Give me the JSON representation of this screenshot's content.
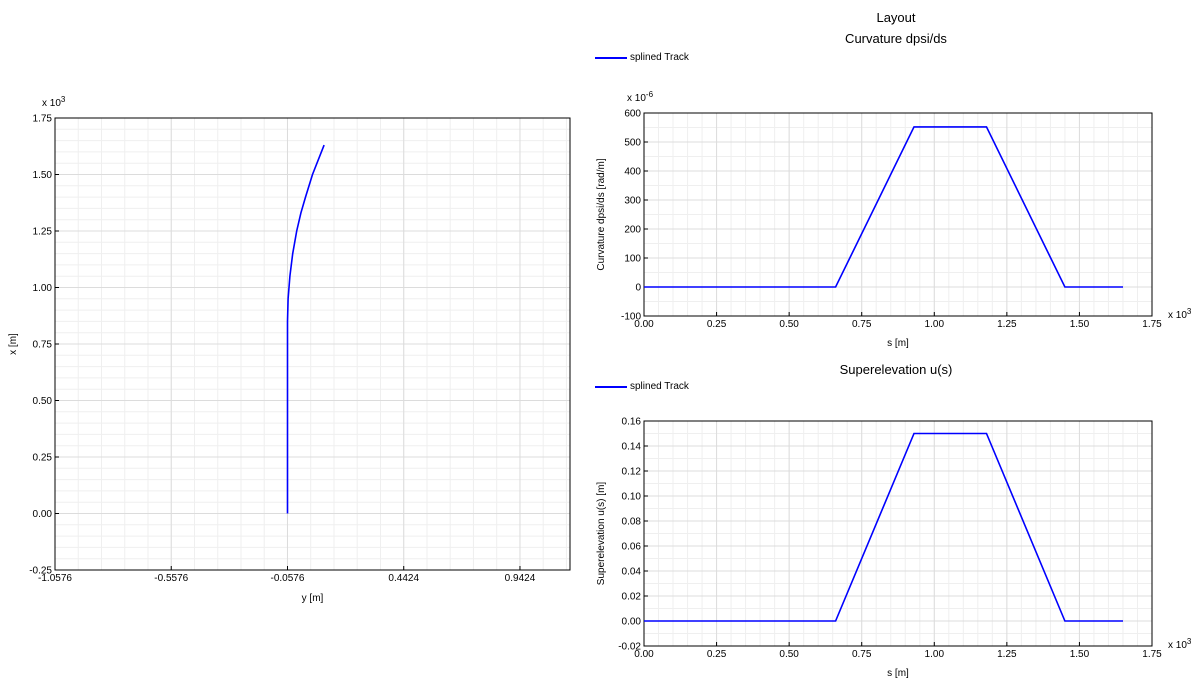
{
  "headings": {
    "layout": "Layout",
    "curvature": "Curvature dpsi/ds",
    "superelevation": "Superelevation u(s)"
  },
  "colors": {
    "series": "#0000ff",
    "grid": "#dcdcdc",
    "axis": "#000000"
  },
  "chart_data": [
    {
      "type": "line",
      "title": "",
      "xlabel": "y [m]",
      "ylabel": "x [m]",
      "x_exponent": "",
      "y_exponent": "x 10^3",
      "xlim": [
        -1.0576,
        1.1576
      ],
      "ylim": [
        -0.25,
        1.75
      ],
      "xticks": [
        "-1.0576",
        "-0.5576",
        "-0.0576",
        "0.4424",
        "0.9424"
      ],
      "xtick_values": [
        -1.0576,
        -0.5576,
        -0.0576,
        0.4424,
        0.9424
      ],
      "yticks": [
        "-0.25",
        "0.00",
        "0.25",
        "0.50",
        "0.75",
        "1.00",
        "1.25",
        "1.50",
        "1.75"
      ],
      "ytick_values": [
        -0.25,
        0.0,
        0.25,
        0.5,
        0.75,
        1.0,
        1.25,
        1.5,
        1.75
      ],
      "grid": true,
      "legend": "",
      "series": [
        {
          "name": "",
          "x": [
            -0.0576,
            -0.0576,
            -0.0576,
            -0.0576,
            -0.0576,
            -0.055,
            -0.047,
            -0.035,
            -0.018,
            0.0,
            0.02,
            0.05,
            0.1
          ],
          "y": [
            0.0,
            0.25,
            0.5,
            0.75,
            0.85,
            0.95,
            1.05,
            1.15,
            1.25,
            1.33,
            1.4,
            1.5,
            1.63
          ]
        }
      ]
    },
    {
      "type": "line",
      "title": "Curvature dpsi/ds",
      "xlabel": "s [m]",
      "ylabel": "Curvature dpsi/ds [rad/m]",
      "x_exponent": "x 10^3",
      "y_exponent": "x 10^-6",
      "xlim": [
        0,
        1.75
      ],
      "ylim": [
        -100,
        600
      ],
      "xticks": [
        "0.00",
        "0.25",
        "0.50",
        "0.75",
        "1.00",
        "1.25",
        "1.50",
        "1.75"
      ],
      "xtick_values": [
        0,
        0.25,
        0.5,
        0.75,
        1.0,
        1.25,
        1.5,
        1.75
      ],
      "yticks": [
        "-100",
        "0",
        "100",
        "200",
        "300",
        "400",
        "500",
        "600"
      ],
      "ytick_values": [
        -100,
        0,
        100,
        200,
        300,
        400,
        500,
        600
      ],
      "grid": true,
      "legend": "top-left",
      "series": [
        {
          "name": "splined Track",
          "x": [
            0,
            0.66,
            0.93,
            1.18,
            1.45,
            1.65
          ],
          "y": [
            0,
            0,
            552,
            552,
            0,
            0
          ]
        }
      ]
    },
    {
      "type": "line",
      "title": "Superelevation u(s)",
      "xlabel": "s [m]",
      "ylabel": "Superelevation u(s) [m]",
      "x_exponent": "x 10^3",
      "y_exponent": "",
      "xlim": [
        0,
        1.75
      ],
      "ylim": [
        -0.02,
        0.16
      ],
      "xticks": [
        "0.00",
        "0.25",
        "0.50",
        "0.75",
        "1.00",
        "1.25",
        "1.50",
        "1.75"
      ],
      "xtick_values": [
        0,
        0.25,
        0.5,
        0.75,
        1.0,
        1.25,
        1.5,
        1.75
      ],
      "yticks": [
        "-0.02",
        "0.00",
        "0.02",
        "0.04",
        "0.06",
        "0.08",
        "0.10",
        "0.12",
        "0.14",
        "0.16"
      ],
      "ytick_values": [
        -0.02,
        0.0,
        0.02,
        0.04,
        0.06,
        0.08,
        0.1,
        0.12,
        0.14,
        0.16
      ],
      "grid": true,
      "legend": "top-left",
      "series": [
        {
          "name": "splined Track",
          "x": [
            0,
            0.66,
            0.93,
            1.18,
            1.45,
            1.65
          ],
          "y": [
            0,
            0,
            0.15,
            0.15,
            0,
            0
          ]
        }
      ]
    }
  ]
}
